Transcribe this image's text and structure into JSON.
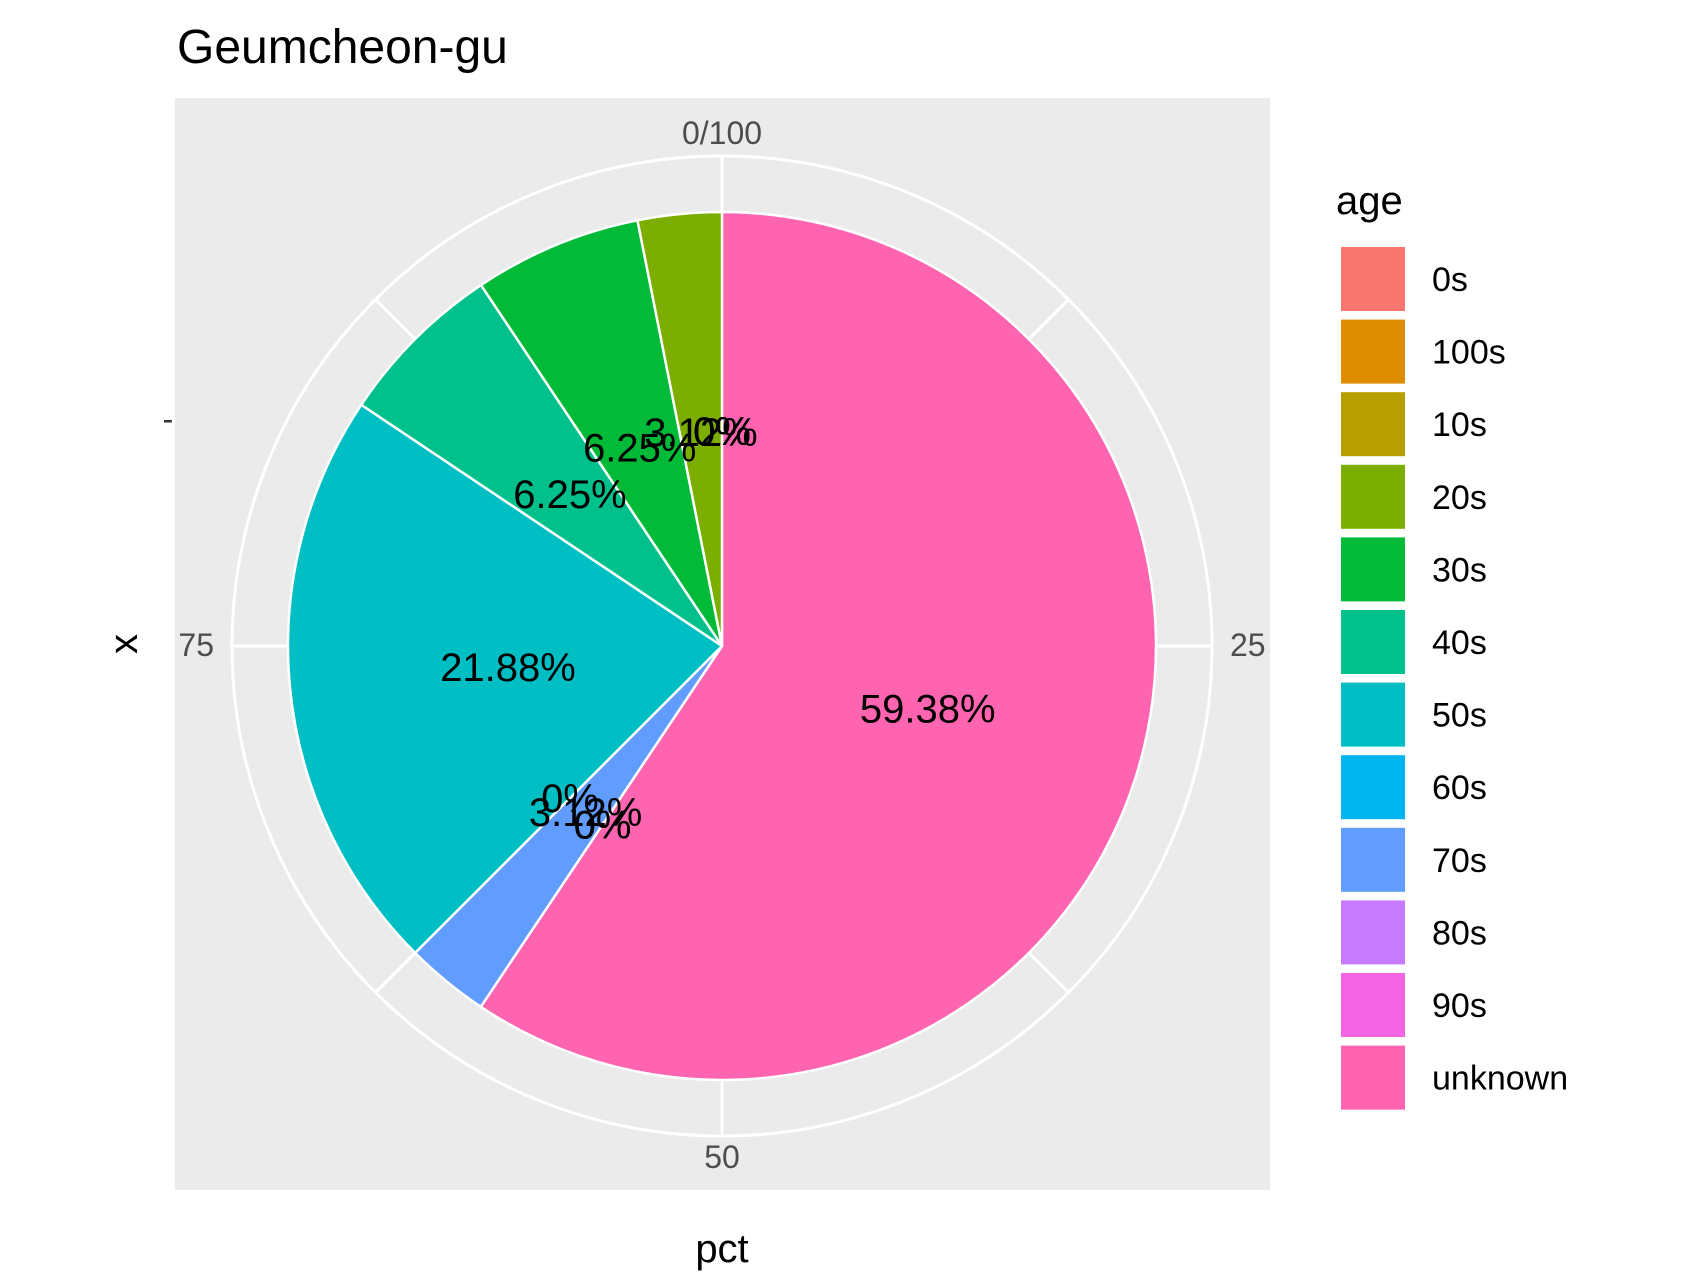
{
  "chart_data": {
    "type": "pie",
    "title": "Geumcheon-gu",
    "xlabel": "pct",
    "ylabel": "x",
    "y_tick_labels": [
      "-"
    ],
    "axis_ticks": [
      "0/100",
      "25",
      "50",
      "75"
    ],
    "legend": {
      "title": "age",
      "placement": "right"
    },
    "background_color": "#EBEBEB",
    "grid": true,
    "slices": [
      {
        "label": "0s",
        "value": 0,
        "label_text": "0%",
        "color": "#F8766D"
      },
      {
        "label": "100s",
        "value": 0,
        "label_text": "0%",
        "color": "#DE8C00"
      },
      {
        "label": "10s",
        "value": 0,
        "label_text": "0%",
        "color": "#B79F00"
      },
      {
        "label": "20s",
        "value": 3.12,
        "label_text": "3.12%",
        "color": "#7CAE00"
      },
      {
        "label": "30s",
        "value": 6.25,
        "label_text": "6.25%",
        "color": "#00BA38"
      },
      {
        "label": "40s",
        "value": 6.25,
        "label_text": "6.25%",
        "color": "#00C08B"
      },
      {
        "label": "50s",
        "value": 21.88,
        "label_text": "21.88%",
        "color": "#00BFC4"
      },
      {
        "label": "60s",
        "value": 0,
        "label_text": "0%",
        "color": "#00B4F0"
      },
      {
        "label": "70s",
        "value": 3.12,
        "label_text": "3.12%",
        "color": "#619CFF"
      },
      {
        "label": "80s",
        "value": 0,
        "label_text": "0%",
        "color": "#C77CFF"
      },
      {
        "label": "90s",
        "value": 0,
        "label_text": "0%",
        "color": "#F564E3"
      },
      {
        "label": "unknown",
        "value": 59.38,
        "label_text": "59.38%",
        "color": "#FF64B0"
      }
    ]
  }
}
